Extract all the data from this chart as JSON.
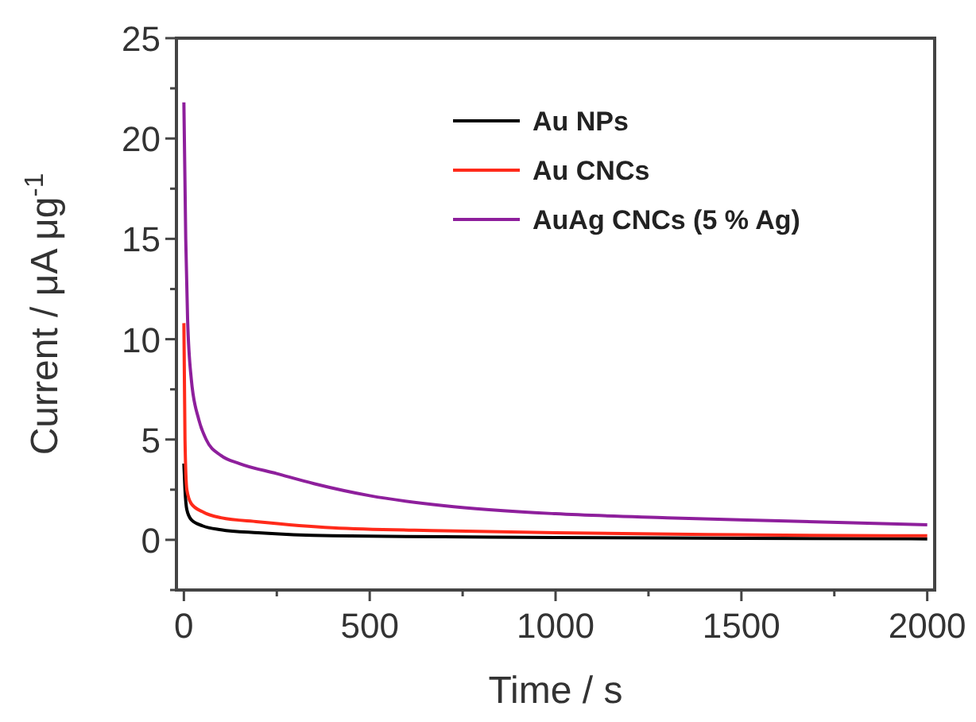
{
  "chart_data": {
    "type": "line",
    "xlabel": "Time / s",
    "ylabel": "Current / μA μg$^{-1}$",
    "xlim": [
      -20,
      2020
    ],
    "ylim": [
      -2.5,
      25
    ],
    "xticks": [
      0,
      {
        "value": 250,
        "label": null
      },
      500,
      {
        "value": 750,
        "label": null
      },
      1000,
      {
        "value": 1250,
        "label": null
      },
      1500,
      {
        "value": 1750,
        "label": null
      },
      2000
    ],
    "yticks": [
      {
        "value": -2.5,
        "label": null
      },
      0,
      {
        "value": 2.5,
        "label": null
      },
      5,
      {
        "value": 7.5,
        "label": null
      },
      10,
      {
        "value": 12.5,
        "label": null
      },
      15,
      {
        "value": 17.5,
        "label": null
      },
      20,
      {
        "value": 22.5,
        "label": null
      },
      25
    ],
    "legend": "top right",
    "grid": false,
    "marker": "none",
    "line_style": "solid",
    "series": [
      {
        "name": "Au NPs",
        "color": "#000000",
        "x": [
          0,
          3,
          8,
          20,
          50,
          100,
          200,
          400,
          700,
          1000,
          1500,
          2000
        ],
        "values": [
          3.8,
          2.5,
          1.5,
          1,
          0.7,
          0.5,
          0.35,
          0.2,
          0.15,
          0.12,
          0.08,
          0.05
        ]
      },
      {
        "name": "Au CNCs",
        "color": "#ff2a1a",
        "x": [
          0,
          3,
          8,
          20,
          50,
          100,
          200,
          400,
          700,
          1000,
          1500,
          2000
        ],
        "values": [
          10.8,
          5,
          2.5,
          1.8,
          1.4,
          1.1,
          0.9,
          0.6,
          0.45,
          0.35,
          0.25,
          0.2
        ]
      },
      {
        "name": "AuAg CNCs (5 % Ag)",
        "color": "#8e1f9c",
        "x": [
          0,
          5,
          10,
          20,
          40,
          60,
          100,
          150,
          250,
          350,
          500,
          700,
          1000,
          1300,
          1600,
          2000
        ],
        "values": [
          21.8,
          15,
          11,
          8,
          6,
          5,
          4.2,
          3.8,
          3.3,
          2.8,
          2.2,
          1.7,
          1.3,
          1.1,
          0.95,
          0.75
        ]
      }
    ]
  }
}
